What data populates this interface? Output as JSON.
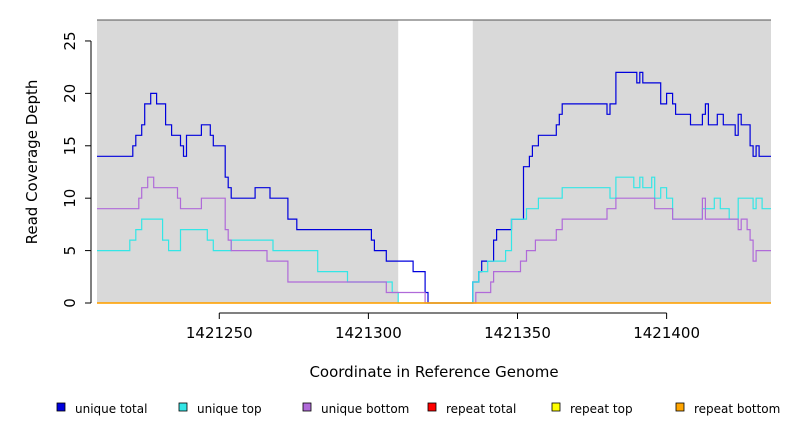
{
  "chart_data": {
    "type": "line",
    "xlabel": "Coordinate in Reference Genome",
    "ylabel": "Read Coverage Depth",
    "xlim": [
      1421209,
      1421435
    ],
    "ylim": [
      0,
      27
    ],
    "xticks": [
      1421250,
      1421300,
      1421350,
      1421400
    ],
    "yticks": [
      0,
      5,
      10,
      15,
      20,
      25
    ],
    "shaded_regions": [
      [
        1421209,
        1421310
      ],
      [
        1421335,
        1421435
      ]
    ],
    "colors": {
      "shade": "#d9d9d9",
      "unique_total": "#0000dd",
      "unique_top": "#33e6e6",
      "unique_bottom": "#b06ad9",
      "repeat_total": "#ff0000",
      "repeat_top": "#ffff00",
      "repeat_bottom": "#ffa500"
    },
    "series": [
      {
        "name": "unique total",
        "key": "unique_total",
        "points": [
          [
            1421209,
            14
          ],
          [
            1421221,
            14
          ],
          [
            1421221,
            15
          ],
          [
            1421222,
            15
          ],
          [
            1421222,
            16
          ],
          [
            1421224,
            16
          ],
          [
            1421224,
            17
          ],
          [
            1421225,
            17
          ],
          [
            1421225,
            19
          ],
          [
            1421227,
            19
          ],
          [
            1421227,
            20
          ],
          [
            1421229,
            20
          ],
          [
            1421229,
            19
          ],
          [
            1421232,
            19
          ],
          [
            1421232,
            17
          ],
          [
            1421234,
            17
          ],
          [
            1421234,
            16
          ],
          [
            1421237,
            16
          ],
          [
            1421237,
            15
          ],
          [
            1421238,
            15
          ],
          [
            1421238,
            14
          ],
          [
            1421239,
            14
          ],
          [
            1421239,
            16
          ],
          [
            1421244,
            16
          ],
          [
            1421244,
            17
          ],
          [
            1421247,
            17
          ],
          [
            1421247,
            16
          ],
          [
            1421248,
            16
          ],
          [
            1421248,
            15
          ],
          [
            1421252,
            15
          ],
          [
            1421252,
            12
          ],
          [
            1421253,
            12
          ],
          [
            1421253,
            11
          ],
          [
            1421254,
            11
          ],
          [
            1421254,
            10
          ],
          [
            1421262,
            10
          ],
          [
            1421262,
            11
          ],
          [
            1421267,
            11
          ],
          [
            1421267,
            10
          ],
          [
            1421273,
            10
          ],
          [
            1421273,
            8
          ],
          [
            1421276,
            8
          ],
          [
            1421276,
            7
          ],
          [
            1421301,
            7
          ],
          [
            1421301,
            6
          ],
          [
            1421302,
            6
          ],
          [
            1421302,
            5
          ],
          [
            1421306,
            5
          ],
          [
            1421306,
            4
          ],
          [
            1421315,
            4
          ],
          [
            1421315,
            3
          ],
          [
            1421319,
            3
          ],
          [
            1421319,
            1
          ],
          [
            1421320,
            1
          ],
          [
            1421320,
            0
          ],
          [
            1421335,
            0
          ],
          [
            1421335,
            2
          ],
          [
            1421337,
            2
          ],
          [
            1421337,
            3
          ],
          [
            1421338,
            3
          ],
          [
            1421338,
            4
          ],
          [
            1421342,
            4
          ],
          [
            1421342,
            6
          ],
          [
            1421343,
            6
          ],
          [
            1421343,
            7
          ],
          [
            1421348,
            7
          ],
          [
            1421348,
            8
          ],
          [
            1421352,
            8
          ],
          [
            1421352,
            13
          ],
          [
            1421354,
            13
          ],
          [
            1421354,
            14
          ],
          [
            1421355,
            14
          ],
          [
            1421355,
            15
          ],
          [
            1421357,
            15
          ],
          [
            1421357,
            16
          ],
          [
            1421363,
            16
          ],
          [
            1421363,
            17
          ],
          [
            1421364,
            17
          ],
          [
            1421364,
            18
          ],
          [
            1421365,
            18
          ],
          [
            1421365,
            19
          ],
          [
            1421380,
            19
          ],
          [
            1421380,
            18
          ],
          [
            1421381,
            18
          ],
          [
            1421381,
            19
          ],
          [
            1421383,
            19
          ],
          [
            1421383,
            22
          ],
          [
            1421390,
            22
          ],
          [
            1421390,
            21
          ],
          [
            1421391,
            21
          ],
          [
            1421391,
            22
          ],
          [
            1421392,
            22
          ],
          [
            1421392,
            21
          ],
          [
            1421398,
            21
          ],
          [
            1421398,
            19
          ],
          [
            1421400,
            19
          ],
          [
            1421400,
            20
          ],
          [
            1421402,
            20
          ],
          [
            1421402,
            19
          ],
          [
            1421403,
            19
          ],
          [
            1421403,
            18
          ],
          [
            1421408,
            18
          ],
          [
            1421408,
            17
          ],
          [
            1421412,
            17
          ],
          [
            1421412,
            18
          ],
          [
            1421413,
            18
          ],
          [
            1421413,
            19
          ],
          [
            1421414,
            19
          ],
          [
            1421414,
            17
          ],
          [
            1421417,
            17
          ],
          [
            1421417,
            18
          ],
          [
            1421419,
            18
          ],
          [
            1421419,
            17
          ],
          [
            1421423,
            17
          ],
          [
            1421423,
            16
          ],
          [
            1421424,
            16
          ],
          [
            1421424,
            18
          ],
          [
            1421425,
            18
          ],
          [
            1421425,
            17
          ],
          [
            1421428,
            17
          ],
          [
            1421428,
            15
          ],
          [
            1421429,
            15
          ],
          [
            1421429,
            14
          ],
          [
            1421430,
            14
          ],
          [
            1421430,
            15
          ],
          [
            1421431,
            15
          ],
          [
            1421431,
            14
          ],
          [
            1421435,
            14
          ]
        ]
      },
      {
        "name": "unique top",
        "key": "unique_top",
        "points": [
          [
            1421209,
            5
          ],
          [
            1421220,
            5
          ],
          [
            1421220,
            6
          ],
          [
            1421222,
            6
          ],
          [
            1421222,
            7
          ],
          [
            1421224,
            7
          ],
          [
            1421224,
            8
          ],
          [
            1421231,
            8
          ],
          [
            1421231,
            6
          ],
          [
            1421233,
            6
          ],
          [
            1421233,
            5
          ],
          [
            1421237,
            5
          ],
          [
            1421237,
            7
          ],
          [
            1421246,
            7
          ],
          [
            1421246,
            6
          ],
          [
            1421248,
            6
          ],
          [
            1421248,
            5
          ],
          [
            1421254,
            5
          ],
          [
            1421254,
            6
          ],
          [
            1421268,
            6
          ],
          [
            1421268,
            5
          ],
          [
            1421283,
            5
          ],
          [
            1421283,
            3
          ],
          [
            1421293,
            3
          ],
          [
            1421293,
            2
          ],
          [
            1421308,
            2
          ],
          [
            1421308,
            1
          ],
          [
            1421310,
            1
          ],
          [
            1421310,
            0
          ],
          [
            1421335,
            0
          ],
          [
            1421335,
            2
          ],
          [
            1421337,
            2
          ],
          [
            1421337,
            3
          ],
          [
            1421340,
            3
          ],
          [
            1421340,
            4
          ],
          [
            1421346,
            4
          ],
          [
            1421346,
            5
          ],
          [
            1421348,
            5
          ],
          [
            1421348,
            8
          ],
          [
            1421353,
            8
          ],
          [
            1421353,
            9
          ],
          [
            1421357,
            9
          ],
          [
            1421357,
            10
          ],
          [
            1421365,
            10
          ],
          [
            1421365,
            11
          ],
          [
            1421381,
            11
          ],
          [
            1421381,
            10
          ],
          [
            1421383,
            10
          ],
          [
            1421383,
            12
          ],
          [
            1421389,
            12
          ],
          [
            1421389,
            11
          ],
          [
            1421391,
            11
          ],
          [
            1421391,
            12
          ],
          [
            1421392,
            12
          ],
          [
            1421392,
            11
          ],
          [
            1421395,
            11
          ],
          [
            1421395,
            12
          ],
          [
            1421396,
            12
          ],
          [
            1421396,
            10
          ],
          [
            1421398,
            10
          ],
          [
            1421398,
            11
          ],
          [
            1421400,
            11
          ],
          [
            1421400,
            10
          ],
          [
            1421402,
            10
          ],
          [
            1421402,
            8
          ],
          [
            1421412,
            8
          ],
          [
            1421412,
            9
          ],
          [
            1421416,
            9
          ],
          [
            1421416,
            10
          ],
          [
            1421418,
            10
          ],
          [
            1421418,
            9
          ],
          [
            1421421,
            9
          ],
          [
            1421421,
            8
          ],
          [
            1421424,
            8
          ],
          [
            1421424,
            10
          ],
          [
            1421429,
            10
          ],
          [
            1421429,
            9
          ],
          [
            1421430,
            9
          ],
          [
            1421430,
            10
          ],
          [
            1421432,
            10
          ],
          [
            1421432,
            9
          ],
          [
            1421435,
            9
          ]
        ]
      },
      {
        "name": "unique bottom",
        "key": "unique_bottom",
        "points": [
          [
            1421209,
            9
          ],
          [
            1421223,
            9
          ],
          [
            1421223,
            10
          ],
          [
            1421224,
            10
          ],
          [
            1421224,
            11
          ],
          [
            1421226,
            11
          ],
          [
            1421226,
            12
          ],
          [
            1421228,
            12
          ],
          [
            1421228,
            11
          ],
          [
            1421236,
            11
          ],
          [
            1421236,
            10
          ],
          [
            1421237,
            10
          ],
          [
            1421237,
            9
          ],
          [
            1421244,
            9
          ],
          [
            1421244,
            10
          ],
          [
            1421252,
            10
          ],
          [
            1421252,
            7
          ],
          [
            1421253,
            7
          ],
          [
            1421253,
            6
          ],
          [
            1421254,
            6
          ],
          [
            1421254,
            5
          ],
          [
            1421266,
            5
          ],
          [
            1421266,
            4
          ],
          [
            1421273,
            4
          ],
          [
            1421273,
            2
          ],
          [
            1421306,
            2
          ],
          [
            1421306,
            1
          ],
          [
            1421319,
            1
          ],
          [
            1421319,
            0
          ],
          [
            1421336,
            0
          ],
          [
            1421336,
            1
          ],
          [
            1421341,
            1
          ],
          [
            1421341,
            2
          ],
          [
            1421342,
            2
          ],
          [
            1421342,
            3
          ],
          [
            1421351,
            3
          ],
          [
            1421351,
            4
          ],
          [
            1421353,
            4
          ],
          [
            1421353,
            5
          ],
          [
            1421356,
            5
          ],
          [
            1421356,
            6
          ],
          [
            1421363,
            6
          ],
          [
            1421363,
            7
          ],
          [
            1421365,
            7
          ],
          [
            1421365,
            8
          ],
          [
            1421380,
            8
          ],
          [
            1421380,
            9
          ],
          [
            1421383,
            9
          ],
          [
            1421383,
            10
          ],
          [
            1421396,
            10
          ],
          [
            1421396,
            9
          ],
          [
            1421402,
            9
          ],
          [
            1421402,
            8
          ],
          [
            1421412,
            8
          ],
          [
            1421412,
            10
          ],
          [
            1421413,
            10
          ],
          [
            1421413,
            8
          ],
          [
            1421424,
            8
          ],
          [
            1421424,
            7
          ],
          [
            1421425,
            7
          ],
          [
            1421425,
            8
          ],
          [
            1421427,
            8
          ],
          [
            1421427,
            7
          ],
          [
            1421428,
            7
          ],
          [
            1421428,
            6
          ],
          [
            1421429,
            6
          ],
          [
            1421429,
            4
          ],
          [
            1421430,
            4
          ],
          [
            1421430,
            5
          ],
          [
            1421435,
            5
          ]
        ]
      },
      {
        "name": "repeat total",
        "key": "repeat_total",
        "points": [
          [
            1421209,
            0
          ],
          [
            1421435,
            0
          ]
        ]
      },
      {
        "name": "repeat top",
        "key": "repeat_top",
        "points": [
          [
            1421209,
            0
          ],
          [
            1421435,
            0
          ]
        ]
      },
      {
        "name": "repeat bottom",
        "key": "repeat_bottom",
        "points": [
          [
            1421209,
            0
          ],
          [
            1421435,
            0
          ]
        ]
      }
    ],
    "legend": [
      {
        "label": "unique total",
        "key": "unique_total"
      },
      {
        "label": "unique top",
        "key": "unique_top"
      },
      {
        "label": "unique bottom",
        "key": "unique_bottom"
      },
      {
        "label": "repeat total",
        "key": "repeat_total"
      },
      {
        "label": "repeat top",
        "key": "repeat_top"
      },
      {
        "label": "repeat bottom",
        "key": "repeat_bottom"
      }
    ]
  }
}
